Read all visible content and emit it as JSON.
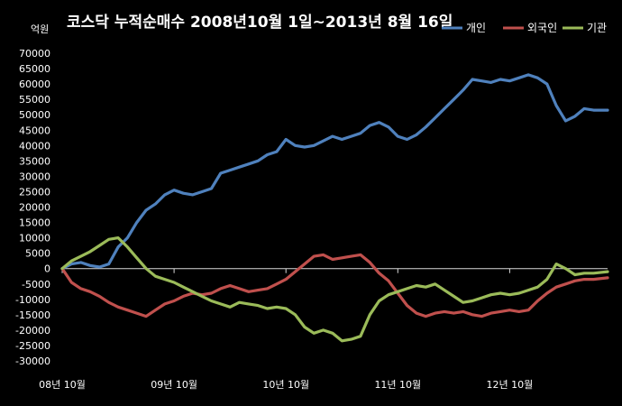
{
  "chart_data": {
    "type": "line",
    "title": "코스닥 누적순매수 2008년10월 1일~2013년 8월 16일",
    "unit_label": "억원",
    "xlabel": "",
    "ylabel": "",
    "ylim": [
      -30000,
      70000
    ],
    "y_ticks": [
      70000,
      65000,
      60000,
      55000,
      50000,
      45000,
      40000,
      35000,
      30000,
      25000,
      20000,
      15000,
      10000,
      5000,
      0,
      -5000,
      -10000,
      -15000,
      -20000,
      -25000,
      -30000
    ],
    "x_tick_labels": [
      "08년 10월",
      "09년 10월",
      "10년 10월",
      "11년 10월",
      "12년 10월"
    ],
    "x_tick_positions": [
      0,
      12,
      24,
      36,
      48
    ],
    "x_range": [
      0,
      58.5
    ],
    "grid": false,
    "legend_position": "top-right",
    "series": [
      {
        "name": "개인",
        "color": "#4F81BD",
        "points": [
          [
            0,
            0
          ],
          [
            1,
            1500
          ],
          [
            2,
            2000
          ],
          [
            3,
            1000
          ],
          [
            4,
            500
          ],
          [
            5,
            1500
          ],
          [
            6,
            7000
          ],
          [
            7,
            10000
          ],
          [
            8,
            15000
          ],
          [
            9,
            19000
          ],
          [
            10,
            21000
          ],
          [
            11,
            24000
          ],
          [
            12,
            25500
          ],
          [
            13,
            24500
          ],
          [
            14,
            24000
          ],
          [
            15,
            25000
          ],
          [
            16,
            26000
          ],
          [
            17,
            31000
          ],
          [
            18,
            32000
          ],
          [
            19,
            33000
          ],
          [
            20,
            34000
          ],
          [
            21,
            35000
          ],
          [
            22,
            37000
          ],
          [
            23,
            38000
          ],
          [
            24,
            42000
          ],
          [
            25,
            40000
          ],
          [
            26,
            39500
          ],
          [
            27,
            40000
          ],
          [
            28,
            41500
          ],
          [
            29,
            43000
          ],
          [
            30,
            42000
          ],
          [
            31,
            43000
          ],
          [
            32,
            44000
          ],
          [
            33,
            46500
          ],
          [
            34,
            47500
          ],
          [
            35,
            46000
          ],
          [
            36,
            43000
          ],
          [
            37,
            42000
          ],
          [
            38,
            43500
          ],
          [
            39,
            46000
          ],
          [
            40,
            49000
          ],
          [
            41,
            52000
          ],
          [
            42,
            55000
          ],
          [
            43,
            58000
          ],
          [
            44,
            61500
          ],
          [
            45,
            61000
          ],
          [
            46,
            60500
          ],
          [
            47,
            61500
          ],
          [
            48,
            61000
          ],
          [
            49,
            62000
          ],
          [
            50,
            63000
          ],
          [
            51,
            62000
          ],
          [
            52,
            60000
          ],
          [
            53,
            53000
          ],
          [
            54,
            48000
          ],
          [
            55,
            49500
          ],
          [
            56,
            52000
          ],
          [
            57,
            51500
          ],
          [
            58.5,
            51500
          ]
        ]
      },
      {
        "name": "외국인",
        "color": "#C0504D",
        "points": [
          [
            0,
            0
          ],
          [
            1,
            -4500
          ],
          [
            2,
            -6500
          ],
          [
            3,
            -7500
          ],
          [
            4,
            -9000
          ],
          [
            5,
            -11000
          ],
          [
            6,
            -12500
          ],
          [
            7,
            -13500
          ],
          [
            8,
            -14500
          ],
          [
            9,
            -15500
          ],
          [
            10,
            -13500
          ],
          [
            11,
            -11500
          ],
          [
            12,
            -10500
          ],
          [
            13,
            -9000
          ],
          [
            14,
            -8000
          ],
          [
            15,
            -8500
          ],
          [
            16,
            -8000
          ],
          [
            17,
            -6500
          ],
          [
            18,
            -5500
          ],
          [
            19,
            -6500
          ],
          [
            20,
            -7500
          ],
          [
            21,
            -7000
          ],
          [
            22,
            -6500
          ],
          [
            23,
            -5000
          ],
          [
            24,
            -3500
          ],
          [
            25,
            -1000
          ],
          [
            26,
            1500
          ],
          [
            27,
            4000
          ],
          [
            28,
            4500
          ],
          [
            29,
            3000
          ],
          [
            30,
            3500
          ],
          [
            31,
            4000
          ],
          [
            32,
            4500
          ],
          [
            33,
            2000
          ],
          [
            34,
            -1500
          ],
          [
            35,
            -4000
          ],
          [
            36,
            -8000
          ],
          [
            37,
            -12000
          ],
          [
            38,
            -14500
          ],
          [
            39,
            -15500
          ],
          [
            40,
            -14500
          ],
          [
            41,
            -14000
          ],
          [
            42,
            -14500
          ],
          [
            43,
            -14000
          ],
          [
            44,
            -15000
          ],
          [
            45,
            -15500
          ],
          [
            46,
            -14500
          ],
          [
            47,
            -14000
          ],
          [
            48,
            -13500
          ],
          [
            49,
            -14000
          ],
          [
            50,
            -13500
          ],
          [
            51,
            -10500
          ],
          [
            52,
            -8000
          ],
          [
            53,
            -6000
          ],
          [
            54,
            -5000
          ],
          [
            55,
            -4000
          ],
          [
            56,
            -3500
          ],
          [
            57,
            -3500
          ],
          [
            58.5,
            -3000
          ]
        ]
      },
      {
        "name": "기관",
        "color": "#9BBB59",
        "points": [
          [
            0,
            0
          ],
          [
            1,
            2500
          ],
          [
            2,
            4000
          ],
          [
            3,
            5500
          ],
          [
            4,
            7500
          ],
          [
            5,
            9500
          ],
          [
            6,
            10000
          ],
          [
            7,
            7000
          ],
          [
            8,
            3500
          ],
          [
            9,
            0
          ],
          [
            10,
            -2500
          ],
          [
            11,
            -3500
          ],
          [
            12,
            -4500
          ],
          [
            13,
            -6000
          ],
          [
            14,
            -7500
          ],
          [
            15,
            -9000
          ],
          [
            16,
            -10500
          ],
          [
            17,
            -11500
          ],
          [
            18,
            -12500
          ],
          [
            19,
            -11000
          ],
          [
            20,
            -11500
          ],
          [
            21,
            -12000
          ],
          [
            22,
            -13000
          ],
          [
            23,
            -12500
          ],
          [
            24,
            -13000
          ],
          [
            25,
            -15000
          ],
          [
            26,
            -19000
          ],
          [
            27,
            -21000
          ],
          [
            28,
            -20000
          ],
          [
            29,
            -21000
          ],
          [
            30,
            -23500
          ],
          [
            31,
            -23000
          ],
          [
            32,
            -22000
          ],
          [
            33,
            -15000
          ],
          [
            34,
            -10500
          ],
          [
            35,
            -8500
          ],
          [
            36,
            -7500
          ],
          [
            37,
            -6500
          ],
          [
            38,
            -5500
          ],
          [
            39,
            -6000
          ],
          [
            40,
            -5000
          ],
          [
            41,
            -7000
          ],
          [
            42,
            -9000
          ],
          [
            43,
            -11000
          ],
          [
            44,
            -10500
          ],
          [
            45,
            -9500
          ],
          [
            46,
            -8500
          ],
          [
            47,
            -8000
          ],
          [
            48,
            -8500
          ],
          [
            49,
            -8000
          ],
          [
            50,
            -7000
          ],
          [
            51,
            -6000
          ],
          [
            52,
            -3500
          ],
          [
            53,
            1500
          ],
          [
            54,
            0
          ],
          [
            55,
            -2000
          ],
          [
            56,
            -1500
          ],
          [
            57,
            -1500
          ],
          [
            58.5,
            -1000
          ]
        ]
      }
    ]
  }
}
